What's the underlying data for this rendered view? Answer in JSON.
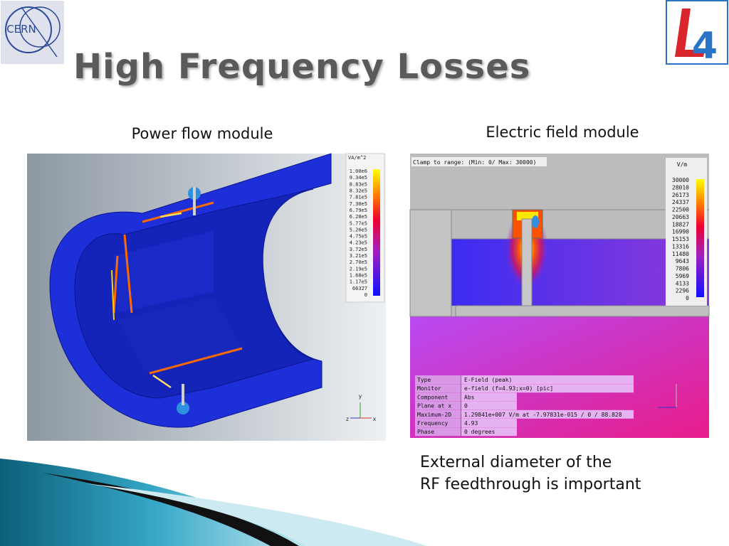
{
  "header": {
    "title": "High Frequency Losses",
    "logo_left": "CERN",
    "logo_right": "4"
  },
  "left_panel": {
    "caption": "Power flow module",
    "colorbar": {
      "unit": "VA/m^2",
      "labels": [
        "1.00e6",
        "9.34e5",
        "8.83e5",
        "8.32e5",
        "7.81e5",
        "7.30e5",
        "6.79e5",
        "6.28e5",
        "5.77e5",
        "5.26e5",
        "4.75e5",
        "4.23e5",
        "3.72e5",
        "3.21e5",
        "2.70e5",
        "2.19e5",
        "1.68e5",
        "1.17e5",
        "66327",
        "0"
      ]
    },
    "axis_labels": [
      "y",
      "z",
      "x"
    ]
  },
  "right_panel": {
    "caption": "Electric field module",
    "clamp_note": "Clamp to range: (Min: 0/ Max: 30000)",
    "colorbar": {
      "unit": "V/m",
      "labels": [
        "30000",
        "28010",
        "26173",
        "24337",
        "22500",
        "20663",
        "18827",
        "16990",
        "15153",
        "13316",
        "11480",
        "9643",
        "7806",
        "5969",
        "4133",
        "2296",
        "0"
      ]
    },
    "info_table": {
      "rows": [
        [
          "Type",
          "E-Field (peak)"
        ],
        [
          "Monitor",
          "e-field (f=4.93;x=0) [pic]"
        ],
        [
          "Component",
          "Abs"
        ],
        [
          "Plane at x",
          "0"
        ],
        [
          "Maximum-2D",
          "1.29841e+007 V/m at -7.97831e-015 / 0 / 88.828"
        ],
        [
          "Frequency",
          "4.93"
        ],
        [
          "Phase",
          "0 degrees"
        ]
      ]
    }
  },
  "note": {
    "lines": [
      "External diameter of the",
      "RF feedthrough is important"
    ]
  }
}
